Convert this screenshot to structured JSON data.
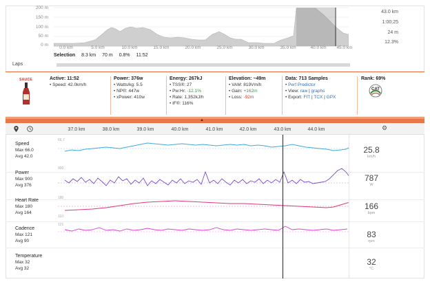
{
  "elevation": {
    "y_ticks": [
      "200 m",
      "150 m",
      "100 m",
      "50 m",
      "0 m"
    ],
    "x_ticks": [
      "0.0 km",
      "5.0 km",
      "10.0 km",
      "15.0 km",
      "20.0 km",
      "25.0 km",
      "30.0 km",
      "35.0 km",
      "40.0 km",
      "45.0 km"
    ],
    "summary": [
      "43.0 km",
      "1:00:25",
      "24 m",
      "12.3%"
    ]
  },
  "selection": {
    "label": "Selection",
    "distance": "8.3 km",
    "elev": "70 m",
    "grade": "0.8%",
    "time": "11:52"
  },
  "laps": {
    "label": "Laps"
  },
  "stats": {
    "logo": "SAUCE",
    "active": {
      "title": "Active: 11:52",
      "speed": "• Speed: 42.0km/h"
    },
    "power": {
      "title": "Power: 376w",
      "wkg": "• Watts/kg: 5.5",
      "np": "• NP®: 447w",
      "xpower": "• xPower: 410w"
    },
    "energy": {
      "title": "Energy: 267kJ",
      "tss": "• TSS®: 27",
      "pwhr": "• Pw:Hr:",
      "pwhr_val": "-12.1%",
      "rate": "• Rate: 1,352kJ/h",
      "if": "• IF®: 116%"
    },
    "elevation": {
      "title": "Elevation: ~49m",
      "vam": "• VAM: 819Vm/h",
      "gain": "• Gain:",
      "gain_val": "+162m",
      "loss": "• Loss:",
      "loss_val": "-92m"
    },
    "data": {
      "title": "Data: 713 Samples",
      "pp": "Perf Predictor",
      "view": "• View:",
      "view_raw": "raw",
      "view_graphs": "graphs",
      "export": "• Export:",
      "fit": "FIT",
      "tcx": "TCX",
      "gpx": "GPX"
    },
    "rank": {
      "title": "Rank: 69%",
      "cat": "CAT"
    }
  },
  "timeline": {
    "ticks": [
      "37.0 km",
      "38.0 km",
      "39.0 km",
      "40.0 km",
      "41.0 km",
      "42.0 km",
      "43.0 km",
      "44.0 km"
    ]
  },
  "rows": [
    {
      "title": "Speed",
      "max": "Max 66.0",
      "avg": "Avg 42.0",
      "axis_top": "66.7",
      "axis_bot": "",
      "value": "25.8",
      "unit": "km/h"
    },
    {
      "title": "Power",
      "max": "Max 900",
      "avg": "Avg 376",
      "axis_top": "900",
      "axis_bot": "",
      "value": "787",
      "unit": "W"
    },
    {
      "title": "Heart Rate",
      "max": "Max 180",
      "avg": "Avg 164",
      "axis_top": "180",
      "axis_bot": "110",
      "value": "166",
      "unit": "bpm"
    },
    {
      "title": "Cadence",
      "max": "Max 121",
      "avg": "Avg 90",
      "axis_top": "121",
      "axis_bot": "",
      "value": "83",
      "unit": "rpm"
    },
    {
      "title": "Temperature",
      "max": "Max 32",
      "avg": "Avg 32",
      "axis_top": "",
      "axis_bot": "",
      "value": "32",
      "unit": "°C"
    }
  ],
  "colors": {
    "accent": "#e8774a",
    "speed": "#3fa9df",
    "power": "#7a4bc8",
    "heart": "#e0357a",
    "cadence": "#e040d8"
  }
}
